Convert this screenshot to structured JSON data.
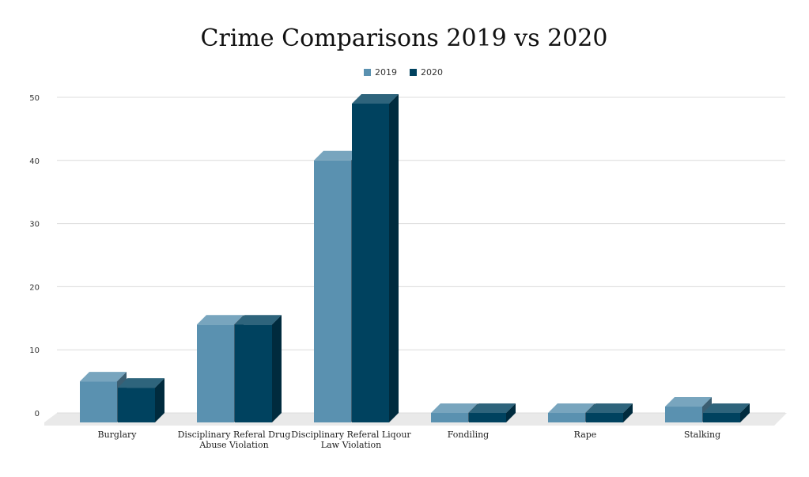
{
  "chart_data": {
    "type": "bar",
    "style": "3d-clustered-column",
    "title": "Crime Comparisons 2019 vs 2020",
    "xlabel": "",
    "ylabel": "",
    "ylim": [
      0,
      50
    ],
    "yticks": [
      0,
      10,
      20,
      30,
      40,
      50
    ],
    "grid": true,
    "legend_position": "top-center",
    "categories": [
      [
        "Burglary"
      ],
      [
        "Disciplinary Referal Drug",
        "Abuse Violation"
      ],
      [
        "Disciplinary Referal Liqour",
        "Law Violation"
      ],
      [
        "Fondiling"
      ],
      [
        "Rape"
      ],
      [
        "Stalking"
      ]
    ],
    "series": [
      {
        "name": "2019",
        "color": "#5a91b0",
        "values": [
          5,
          14,
          40,
          0,
          0,
          1
        ]
      },
      {
        "name": "2020",
        "color": "#00425f",
        "values": [
          4,
          14,
          49,
          0,
          0,
          0
        ]
      }
    ]
  }
}
